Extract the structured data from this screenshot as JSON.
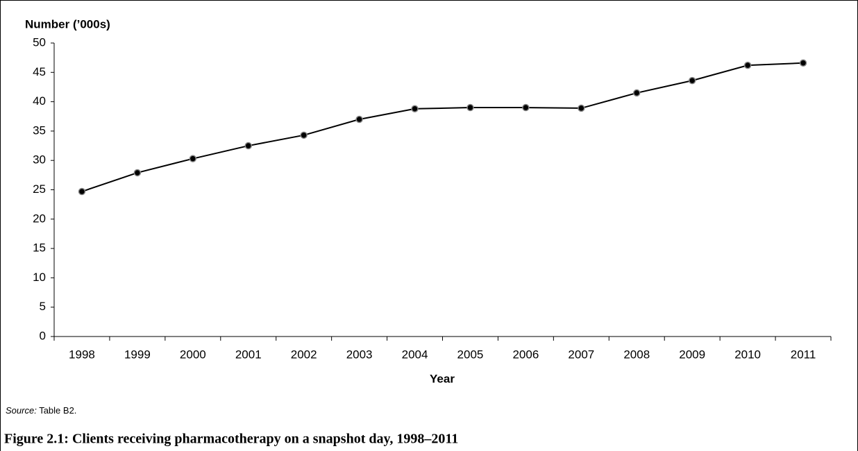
{
  "chart_data": {
    "type": "line",
    "y_label": "Number (’000s)",
    "x_label": "Year",
    "source_label": "Source:",
    "source": "Table B2.",
    "caption": "Figure 2.1: Clients receiving pharmacotherapy on a snapshot day, 1998–2011",
    "categories": [
      "1998",
      "1999",
      "2000",
      "2001",
      "2002",
      "2003",
      "2004",
      "2005",
      "2006",
      "2007",
      "2008",
      "2009",
      "2010",
      "2011"
    ],
    "values": [
      24.7,
      27.9,
      30.3,
      32.5,
      34.3,
      37.0,
      38.8,
      39.0,
      39.0,
      38.9,
      41.5,
      43.6,
      46.2,
      46.6
    ],
    "color": "#000000",
    "ylim": [
      0,
      50
    ],
    "yticks": [
      0,
      5,
      10,
      15,
      20,
      25,
      30,
      35,
      40,
      45,
      50
    ],
    "grid": false
  }
}
